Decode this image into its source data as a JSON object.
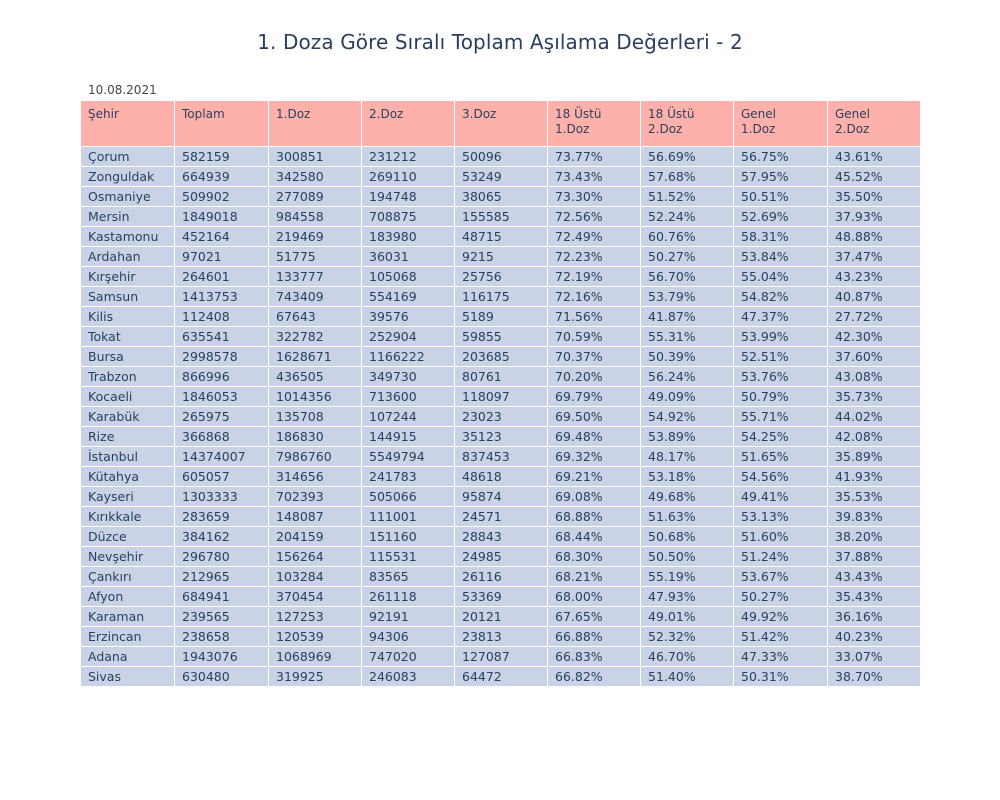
{
  "title": "1. Doza Göre Sıralı Toplam Aşılama Değerleri - 2",
  "date": "10.08.2021",
  "colors": {
    "header_bg": "#feb1ab",
    "cell_bg": "#cad3e6",
    "text": "#2a3f5f"
  },
  "chart_data": {
    "type": "table",
    "title": "1. Doza Göre Sıralı Toplam Aşılama Değerleri - 2",
    "columns": [
      "Şehir",
      "Toplam",
      "1.Doz",
      "2.Doz",
      "3.Doz",
      "18 Üstü\n1.Doz",
      "18 Üstü\n2.Doz",
      "Genel\n1.Doz",
      "Genel\n2.Doz"
    ],
    "rows": [
      [
        "Çorum",
        "582159",
        "300851",
        "231212",
        "50096",
        "73.77%",
        "56.69%",
        "56.75%",
        "43.61%"
      ],
      [
        "Zonguldak",
        "664939",
        "342580",
        "269110",
        "53249",
        "73.43%",
        "57.68%",
        "57.95%",
        "45.52%"
      ],
      [
        "Osmaniye",
        "509902",
        "277089",
        "194748",
        "38065",
        "73.30%",
        "51.52%",
        "50.51%",
        "35.50%"
      ],
      [
        "Mersin",
        "1849018",
        "984558",
        "708875",
        "155585",
        "72.56%",
        "52.24%",
        "52.69%",
        "37.93%"
      ],
      [
        "Kastamonu",
        "452164",
        "219469",
        "183980",
        "48715",
        "72.49%",
        "60.76%",
        "58.31%",
        "48.88%"
      ],
      [
        "Ardahan",
        "97021",
        "51775",
        "36031",
        "9215",
        "72.23%",
        "50.27%",
        "53.84%",
        "37.47%"
      ],
      [
        "Kırşehir",
        "264601",
        "133777",
        "105068",
        "25756",
        "72.19%",
        "56.70%",
        "55.04%",
        "43.23%"
      ],
      [
        "Samsun",
        "1413753",
        "743409",
        "554169",
        "116175",
        "72.16%",
        "53.79%",
        "54.82%",
        "40.87%"
      ],
      [
        "Kilis",
        "112408",
        "67643",
        "39576",
        "5189",
        "71.56%",
        "41.87%",
        "47.37%",
        "27.72%"
      ],
      [
        "Tokat",
        "635541",
        "322782",
        "252904",
        "59855",
        "70.59%",
        "55.31%",
        "53.99%",
        "42.30%"
      ],
      [
        "Bursa",
        "2998578",
        "1628671",
        "1166222",
        "203685",
        "70.37%",
        "50.39%",
        "52.51%",
        "37.60%"
      ],
      [
        "Trabzon",
        "866996",
        "436505",
        "349730",
        "80761",
        "70.20%",
        "56.24%",
        "53.76%",
        "43.08%"
      ],
      [
        "Kocaeli",
        "1846053",
        "1014356",
        "713600",
        "118097",
        "69.79%",
        "49.09%",
        "50.79%",
        "35.73%"
      ],
      [
        "Karabük",
        "265975",
        "135708",
        "107244",
        "23023",
        "69.50%",
        "54.92%",
        "55.71%",
        "44.02%"
      ],
      [
        "Rize",
        "366868",
        "186830",
        "144915",
        "35123",
        "69.48%",
        "53.89%",
        "54.25%",
        "42.08%"
      ],
      [
        "İstanbul",
        "14374007",
        "7986760",
        "5549794",
        "837453",
        "69.32%",
        "48.17%",
        "51.65%",
        "35.89%"
      ],
      [
        "Kütahya",
        "605057",
        "314656",
        "241783",
        "48618",
        "69.21%",
        "53.18%",
        "54.56%",
        "41.93%"
      ],
      [
        "Kayseri",
        "1303333",
        "702393",
        "505066",
        "95874",
        "69.08%",
        "49.68%",
        "49.41%",
        "35.53%"
      ],
      [
        "Kırıkkale",
        "283659",
        "148087",
        "111001",
        "24571",
        "68.88%",
        "51.63%",
        "53.13%",
        "39.83%"
      ],
      [
        "Düzce",
        "384162",
        "204159",
        "151160",
        "28843",
        "68.44%",
        "50.68%",
        "51.60%",
        "38.20%"
      ],
      [
        "Nevşehir",
        "296780",
        "156264",
        "115531",
        "24985",
        "68.30%",
        "50.50%",
        "51.24%",
        "37.88%"
      ],
      [
        "Çankırı",
        "212965",
        "103284",
        "83565",
        "26116",
        "68.21%",
        "55.19%",
        "53.67%",
        "43.43%"
      ],
      [
        "Afyon",
        "684941",
        "370454",
        "261118",
        "53369",
        "68.00%",
        "47.93%",
        "50.27%",
        "35.43%"
      ],
      [
        "Karaman",
        "239565",
        "127253",
        "92191",
        "20121",
        "67.65%",
        "49.01%",
        "49.92%",
        "36.16%"
      ],
      [
        "Erzincan",
        "238658",
        "120539",
        "94306",
        "23813",
        "66.88%",
        "52.32%",
        "51.42%",
        "40.23%"
      ],
      [
        "Adana",
        "1943076",
        "1068969",
        "747020",
        "127087",
        "66.83%",
        "46.70%",
        "47.33%",
        "33.07%"
      ],
      [
        "Sivas",
        "630480",
        "319925",
        "246083",
        "64472",
        "66.82%",
        "51.40%",
        "50.31%",
        "38.70%"
      ]
    ]
  }
}
